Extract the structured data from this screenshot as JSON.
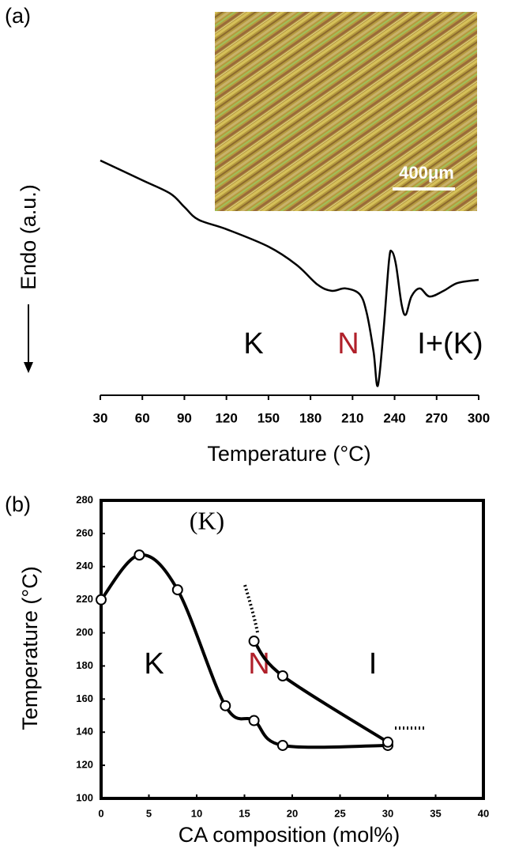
{
  "chart_data": [
    {
      "type": "line",
      "panel_label": "(a)",
      "y_label": "Endo (a.u.)",
      "x_label": "Temperature (°C)",
      "annotations": [
        "K",
        "N",
        "I+(K)"
      ],
      "scale_bar": "400μm",
      "x": [
        30,
        60,
        80,
        90,
        100,
        120,
        150,
        170,
        185,
        195,
        205,
        215,
        220,
        225,
        228,
        232,
        236,
        238,
        241,
        245,
        248,
        252,
        258,
        265,
        275,
        285,
        300
      ],
      "values": [
        95.7,
        87.4,
        81.8,
        76.2,
        70.9,
        66.9,
        59.6,
        52.0,
        43.7,
        41.1,
        42.1,
        39.7,
        32.1,
        15.6,
        1.3,
        23.8,
        53.6,
        57.6,
        52.0,
        35.4,
        31.1,
        38.7,
        42.1,
        38.7,
        41.1,
        44.4,
        45.7
      ],
      "color": "#000000",
      "xlim": [
        30,
        300
      ],
      "ylim": [
        0,
        100
      ],
      "xticks": [
        30,
        60,
        90,
        120,
        150,
        180,
        210,
        240,
        270,
        300
      ]
    },
    {
      "type": "scatter",
      "panel_label": "(b)",
      "y_label": "Temperature (°C)",
      "x_label": "CA composition (mol%)",
      "annotations": [
        "(K)",
        "K",
        "N",
        "I"
      ],
      "series": [
        {
          "color": "#000000",
          "x": [
            0,
            4,
            8,
            13,
            16,
            19,
            30
          ],
          "values": [
            220,
            247,
            226,
            156,
            147,
            132,
            132
          ]
        },
        {
          "color": "#000000",
          "x": [
            16,
            19,
            30
          ],
          "values": [
            195,
            174,
            134
          ]
        }
      ],
      "xlim": [
        0,
        40
      ],
      "ylim": [
        100,
        280
      ],
      "xticks": [
        0,
        5,
        10,
        15,
        20,
        25,
        30,
        35,
        40
      ],
      "yticks": [
        100,
        120,
        140,
        160,
        180,
        200,
        220,
        240,
        260,
        280
      ]
    }
  ]
}
